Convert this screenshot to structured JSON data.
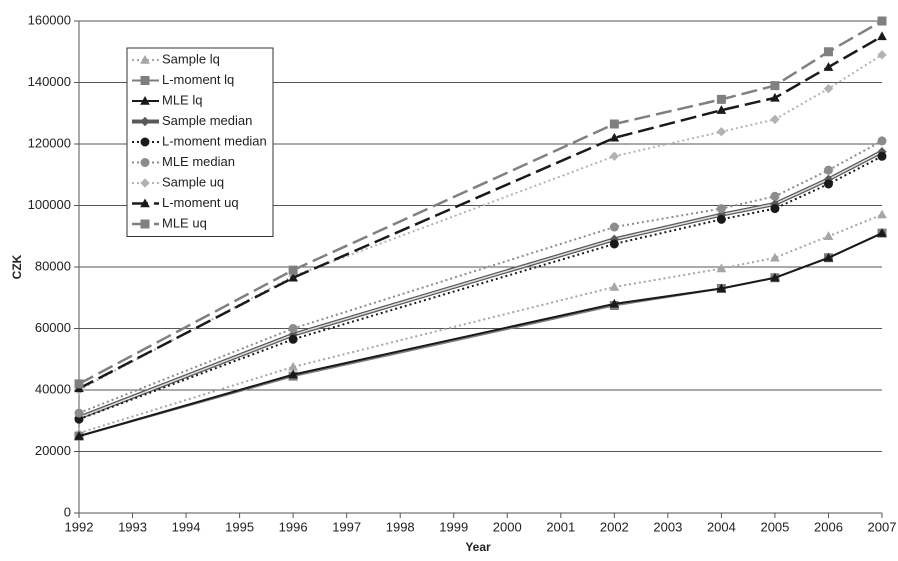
{
  "chart_data": {
    "type": "line",
    "x_label": "Year",
    "y_label": "CZK",
    "x": [
      1992,
      1996,
      2002,
      2004,
      2005,
      2006,
      2007
    ],
    "xlim": [
      1992,
      2007
    ],
    "xticks": [
      1992,
      1993,
      1994,
      1995,
      1996,
      1997,
      1998,
      1999,
      2000,
      2001,
      2002,
      2003,
      2004,
      2005,
      2006,
      2007
    ],
    "ylim": [
      0,
      160000
    ],
    "yticks": [
      0,
      20000,
      40000,
      60000,
      80000,
      100000,
      120000,
      140000,
      160000
    ],
    "grid": true,
    "legend": "upper left",
    "series": [
      {
        "name": "Sample lq",
        "color": "#a6a6a6",
        "line_style": "dotted",
        "marker": "triangle",
        "values": [
          26000,
          47500,
          73500,
          79500,
          83000,
          90000,
          97000
        ]
      },
      {
        "name": "L-moment lq",
        "color": "#7f7f7f",
        "line_style": "solid",
        "marker": "square",
        "values": [
          25000,
          44500,
          67500,
          73000,
          76500,
          83000,
          91000
        ]
      },
      {
        "name": "MLE lq",
        "color": "#1a1a1a",
        "line_style": "solid",
        "marker": "triangle",
        "values": [
          25000,
          45000,
          68000,
          73000,
          76500,
          83000,
          91000
        ]
      },
      {
        "name": "Sample median",
        "color": "#595959",
        "line_style": "double",
        "marker": "diamond",
        "values": [
          31000,
          58000,
          89000,
          97000,
          100500,
          108500,
          117500
        ]
      },
      {
        "name": "L-moment median",
        "color": "#1a1a1a",
        "line_style": "dotted",
        "marker": "circle",
        "values": [
          30500,
          56500,
          87500,
          95500,
          99000,
          107000,
          116000
        ]
      },
      {
        "name": "MLE median",
        "color": "#8c8c8c",
        "line_style": "dotted",
        "marker": "circle",
        "values": [
          32500,
          60000,
          93000,
          99000,
          103000,
          111500,
          121000
        ]
      },
      {
        "name": "Sample uq",
        "color": "#b3b3b3",
        "line_style": "dotted",
        "marker": "diamond",
        "values": [
          40000,
          77000,
          116000,
          124000,
          128000,
          138000,
          149000
        ]
      },
      {
        "name": "L-moment uq",
        "color": "#1a1a1a",
        "line_style": "dashed",
        "marker": "triangle",
        "values": [
          40500,
          76500,
          122000,
          131000,
          135000,
          145000,
          155000
        ]
      },
      {
        "name": "MLE uq",
        "color": "#808080",
        "line_style": "dashed",
        "marker": "square",
        "values": [
          42000,
          79000,
          126500,
          134500,
          139000,
          150000,
          160000
        ]
      }
    ]
  }
}
